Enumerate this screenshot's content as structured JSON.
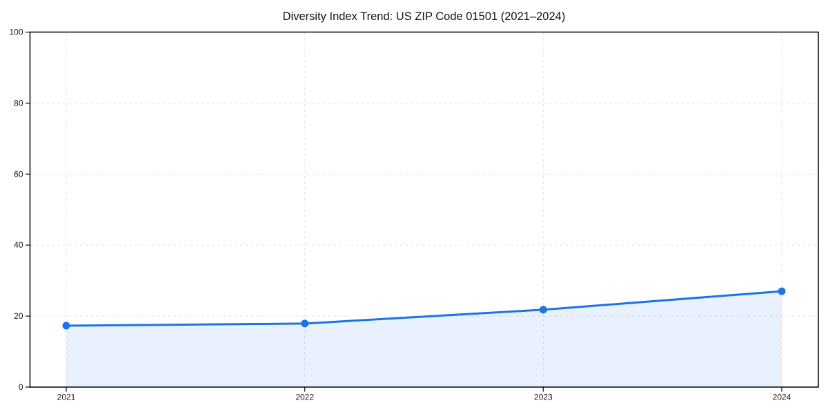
{
  "chart_data": {
    "type": "area",
    "title": "Diversity Index Trend: US ZIP Code 01501 (2021–2024)",
    "x": [
      "2021",
      "2022",
      "2023",
      "2024"
    ],
    "series": [
      {
        "name": "Diversity Index",
        "values": [
          17.3,
          17.9,
          21.8,
          27.0
        ]
      }
    ],
    "xlabel": "",
    "ylabel": "",
    "ylim": [
      0,
      100
    ],
    "yticks": [
      0,
      20,
      40,
      60,
      80,
      100
    ],
    "xticks": [
      "2021",
      "2022",
      "2023",
      "2024"
    ],
    "grid": "dashed",
    "legend": "none",
    "line_color": "#1a73e8",
    "fill_color": "rgba(26,115,232,0.10)",
    "marker": "circle",
    "grid_color": "#e3e3e3",
    "spine_color": "#000000",
    "tick_label_color": "#1a1a1a",
    "background_color": "#ffffff"
  }
}
